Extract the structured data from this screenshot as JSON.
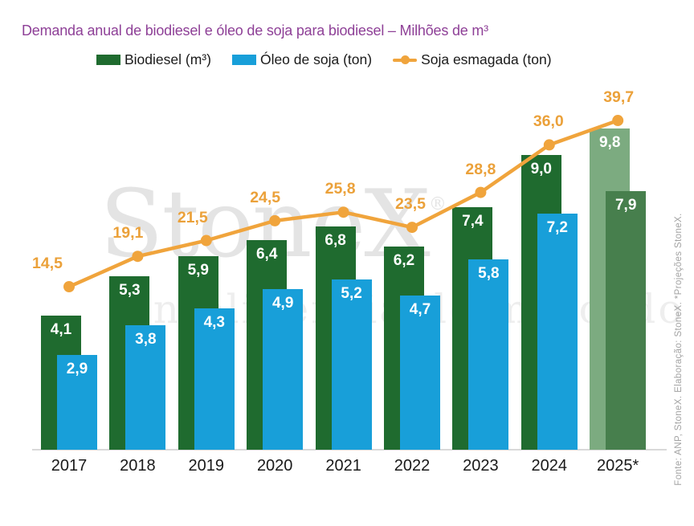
{
  "title": "Demanda anual de biodiesel e óleo de soja para biodiesel – Milhões de m³",
  "legend": [
    {
      "label": "Biodiesel (m³)",
      "type": "bar-swatch",
      "color": "#1f6b2f"
    },
    {
      "label": "Óleo de soja (ton)",
      "type": "bar-swatch",
      "color": "#189fd9"
    },
    {
      "label": "Soja esmagada (ton)",
      "type": "line-marker",
      "color": "#f0a43c"
    }
  ],
  "watermark": {
    "brand": "StoneX",
    "reg": "®",
    "tagline": "Inteligência de mercado"
  },
  "source_note": "Fonte: ANP, StoneX. Elaboração: StoneX. *Projeções StoneX.",
  "chart_data": {
    "type": "bar",
    "subtype": "grouped-overlapping-bars-with-line",
    "title": "Demanda anual de biodiesel e óleo de soja para biodiesel – Milhões de m³",
    "categories": [
      "2017",
      "2018",
      "2019",
      "2020",
      "2021",
      "2022",
      "2023",
      "2024",
      "2025*"
    ],
    "projection_index": 8,
    "grid": false,
    "legend_position": "top",
    "series": [
      {
        "name": "Biodiesel (m³)",
        "type": "bar",
        "color": "#1f6b2f",
        "projection_color": "#7cab80",
        "values": [
          4.1,
          5.3,
          5.9,
          6.4,
          6.8,
          6.2,
          7.4,
          9.0,
          9.8
        ],
        "labels": [
          "4,1",
          "5,3",
          "5,9",
          "6,4",
          "6,8",
          "6,2",
          "7,4",
          "9,0",
          "9,8"
        ]
      },
      {
        "name": "Óleo de soja (ton)",
        "type": "bar",
        "color": "#189fd9",
        "projection_color": "#477f4d",
        "values": [
          2.9,
          3.8,
          4.3,
          4.9,
          5.2,
          4.7,
          5.8,
          7.2,
          7.9
        ],
        "labels": [
          "2,9",
          "3,8",
          "4,3",
          "4,9",
          "5,2",
          "4,7",
          "5,8",
          "7,2",
          "7,9"
        ]
      },
      {
        "name": "Soja esmagada (ton)",
        "type": "line",
        "color": "#f0a43c",
        "label_color": "#eba13a",
        "values": [
          14.5,
          19.1,
          21.5,
          24.5,
          25.8,
          23.5,
          28.8,
          36.0,
          39.7
        ],
        "labels": [
          "14,5",
          "19,1",
          "21,5",
          "24,5",
          "25,8",
          "23,5",
          "28,8",
          "36,0",
          "39,7"
        ]
      }
    ],
    "bar_axis_range": [
      0,
      12.3
    ],
    "line_axis_range": [
      0,
      58
    ]
  }
}
